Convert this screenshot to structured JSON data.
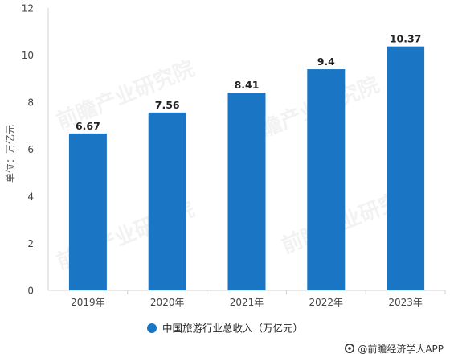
{
  "chart_data": {
    "type": "bar",
    "categories": [
      "2019年",
      "2020年",
      "2021年",
      "2022年",
      "2023年"
    ],
    "series": [
      {
        "name": "中国旅游行业总收入（万亿元）",
        "values": [
          6.67,
          7.56,
          8.41,
          9.4,
          10.37
        ],
        "value_labels": [
          "6.67",
          "7.56",
          "8.41",
          "9.4",
          "10.37"
        ],
        "color": "#1a76c5"
      }
    ],
    "ylabel": "单位：万亿元",
    "ylim": [
      0,
      12
    ],
    "yticks": [
      0,
      2,
      4,
      6,
      8,
      10,
      12
    ],
    "grid": false,
    "legend_position": "bottom"
  },
  "watermark": "前瞻产业研究院",
  "footer": {
    "icon": "qianzhan-logo-icon",
    "text": "@前瞻经济学人APP"
  }
}
